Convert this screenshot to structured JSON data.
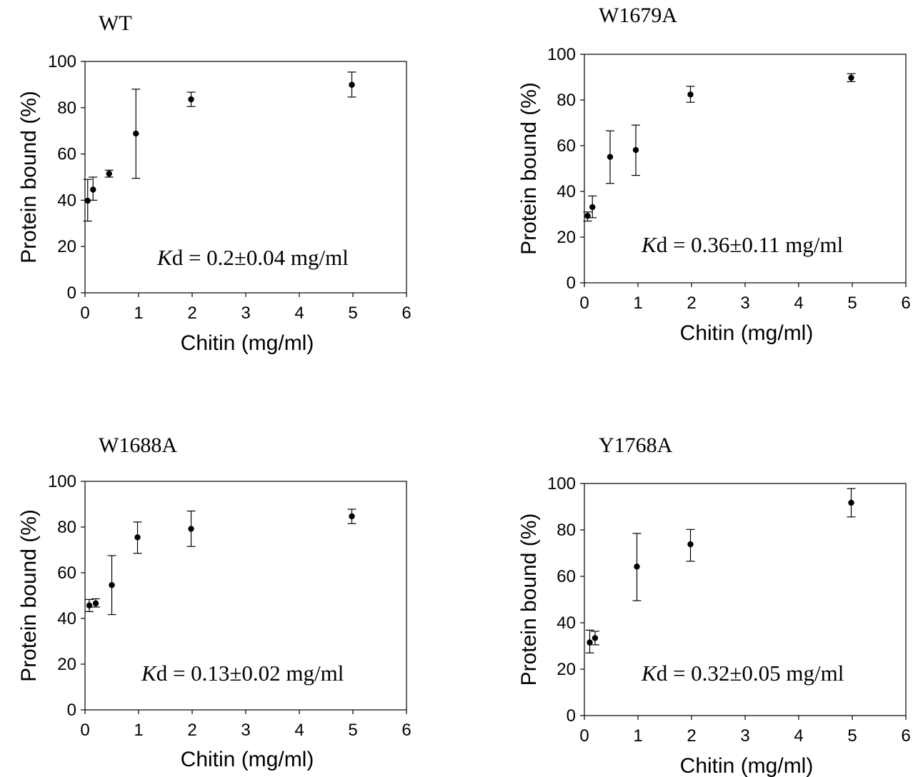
{
  "chart_data": [
    {
      "type": "scatter",
      "title": "WT",
      "xlabel": "Chitin (mg/ml)",
      "ylabel": "Protein bound (%)",
      "xlim": [
        0,
        6
      ],
      "ylim": [
        0,
        100
      ],
      "xticks": [
        "0",
        "1",
        "2",
        "3",
        "4",
        "5",
        "6"
      ],
      "yticks": [
        "0",
        "20",
        "40",
        "60",
        "80",
        "100"
      ],
      "kd_prefix": "K",
      "kd_text": "d = 0.2±0.04 mg/ml",
      "points": [
        {
          "x": 0.05,
          "y": 39.8,
          "err_low": 31,
          "err_high": 49
        },
        {
          "x": 0.15,
          "y": 44.6,
          "err_low": 40,
          "err_high": 50
        },
        {
          "x": 0.45,
          "y": 51.5,
          "err_low": 50,
          "err_high": 53
        },
        {
          "x": 0.95,
          "y": 68.8,
          "err_low": 49.5,
          "err_high": 88
        },
        {
          "x": 1.98,
          "y": 83.6,
          "err_low": 80.5,
          "err_high": 86.7
        },
        {
          "x": 4.98,
          "y": 89.9,
          "err_low": 84.6,
          "err_high": 95.4
        }
      ]
    },
    {
      "type": "scatter",
      "title": "W1679A",
      "xlabel": "Chitin (mg/ml)",
      "ylabel": "Protein bound (%)",
      "xlim": [
        0,
        6
      ],
      "ylim": [
        0,
        100
      ],
      "xticks": [
        "0",
        "1",
        "2",
        "3",
        "4",
        "5",
        "6"
      ],
      "yticks": [
        "0",
        "20",
        "40",
        "60",
        "80",
        "100"
      ],
      "kd_prefix": "K",
      "kd_text": "d = 0.36±0.11 mg/ml",
      "points": [
        {
          "x": 0.06,
          "y": 29.3,
          "err_low": 27,
          "err_high": 31
        },
        {
          "x": 0.15,
          "y": 33.1,
          "err_low": 28.5,
          "err_high": 38
        },
        {
          "x": 0.48,
          "y": 55.1,
          "err_low": 43.5,
          "err_high": 66.5
        },
        {
          "x": 0.96,
          "y": 58.1,
          "err_low": 47,
          "err_high": 69
        },
        {
          "x": 1.98,
          "y": 82.4,
          "err_low": 79,
          "err_high": 86
        },
        {
          "x": 4.98,
          "y": 89.7,
          "err_low": 88,
          "err_high": 91.5
        }
      ]
    },
    {
      "type": "scatter",
      "title": "W1688A",
      "xlabel": "Chitin (mg/ml)",
      "ylabel": "Protein bound (%)",
      "xlim": [
        0,
        6
      ],
      "ylim": [
        0,
        100
      ],
      "xticks": [
        "0",
        "1",
        "2",
        "3",
        "4",
        "5",
        "6"
      ],
      "yticks": [
        "0",
        "20",
        "40",
        "60",
        "80",
        "100"
      ],
      "kd_prefix": "K",
      "kd_text": "d = 0.13±0.02 mg/ml",
      "points": [
        {
          "x": 0.08,
          "y": 45.7,
          "err_low": 43,
          "err_high": 48.3
        },
        {
          "x": 0.2,
          "y": 46.6,
          "err_low": 45,
          "err_high": 48.6
        },
        {
          "x": 0.5,
          "y": 54.6,
          "err_low": 41.7,
          "err_high": 67.5
        },
        {
          "x": 0.98,
          "y": 75.5,
          "err_low": 68.5,
          "err_high": 82.2
        },
        {
          "x": 1.98,
          "y": 79.2,
          "err_low": 71.5,
          "err_high": 87
        },
        {
          "x": 4.98,
          "y": 84.7,
          "err_low": 81.5,
          "err_high": 87.8
        }
      ]
    },
    {
      "type": "scatter",
      "title": "Y1768A",
      "xlabel": "Chitin (mg/ml)",
      "ylabel": "Protein bound (%)",
      "xlim": [
        0,
        6
      ],
      "ylim": [
        0,
        100
      ],
      "xticks": [
        "0",
        "1",
        "2",
        "3",
        "4",
        "5",
        "6"
      ],
      "yticks": [
        "0",
        "20",
        "40",
        "60",
        "80",
        "100"
      ],
      "kd_prefix": "K",
      "kd_text": "d = 0.32±0.05 mg/ml",
      "points": [
        {
          "x": 0.1,
          "y": 31.5,
          "err_low": 27,
          "err_high": 36.8
        },
        {
          "x": 0.2,
          "y": 33.4,
          "err_low": 30.5,
          "err_high": 36.3
        },
        {
          "x": 0.98,
          "y": 64.2,
          "err_low": 49.5,
          "err_high": 78.5
        },
        {
          "x": 1.98,
          "y": 73.8,
          "err_low": 66.5,
          "err_high": 80.2
        },
        {
          "x": 4.98,
          "y": 91.7,
          "err_low": 85.6,
          "err_high": 97.8
        }
      ]
    }
  ]
}
